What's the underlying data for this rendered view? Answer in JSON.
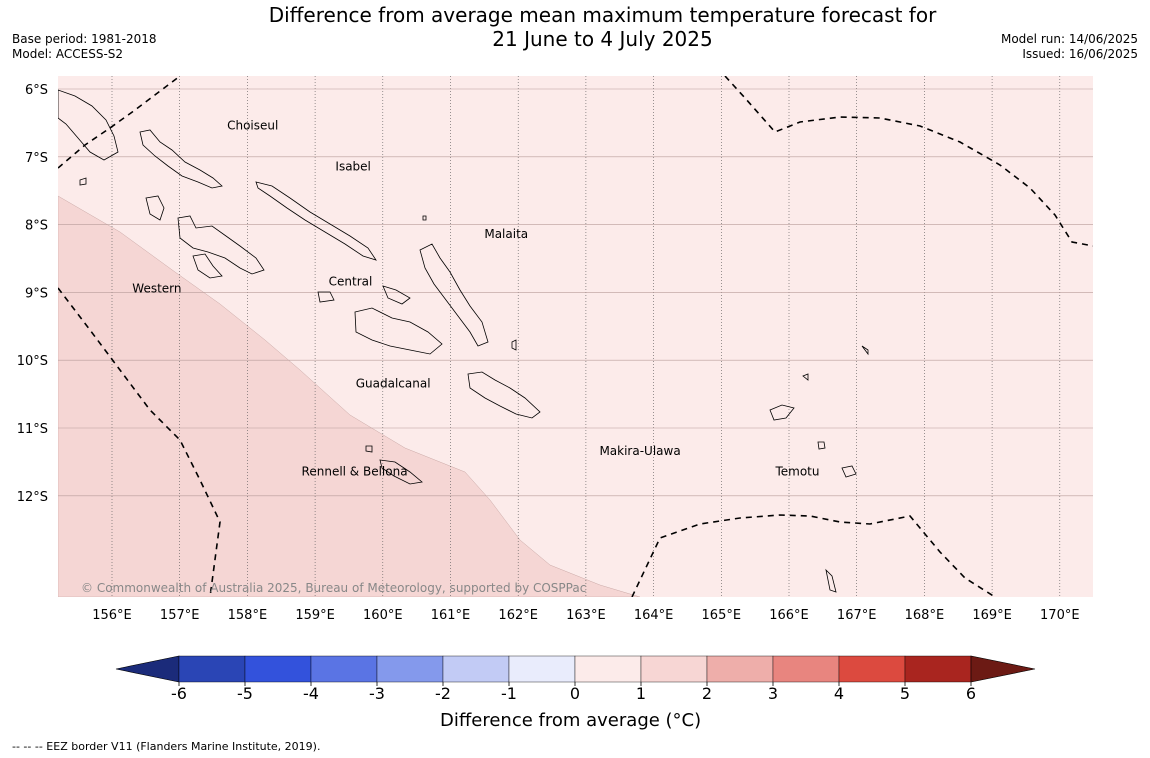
{
  "title_line1": "Difference from average mean maximum temperature forecast for",
  "title_line2": "21 June to 4 July 2025",
  "base_period": "Base period: 1981-2018",
  "model": "Model: ACCESS-S2",
  "model_run": "Model run: 14/06/2025",
  "issued": "Issued: 16/06/2025",
  "copyright": "© Commonwealth of Australia 2025, Bureau of Meteorology, supported by COSPPac",
  "lat_labels": [
    "6°S",
    "7°S",
    "8°S",
    "9°S",
    "10°S",
    "11°S",
    "12°S"
  ],
  "lon_labels": [
    "156°E",
    "157°E",
    "158°E",
    "159°E",
    "160°E",
    "161°E",
    "162°E",
    "163°E",
    "164°E",
    "165°E",
    "166°E",
    "167°E",
    "168°E",
    "169°E",
    "170°E"
  ],
  "regions": [
    {
      "name": "Choiseul",
      "lon": 157.7,
      "lat": -6.6
    },
    {
      "name": "Isabel",
      "lon": 159.3,
      "lat": -7.2
    },
    {
      "name": "Malaita",
      "lon": 161.5,
      "lat": -8.2
    },
    {
      "name": "Western",
      "lon": 156.3,
      "lat": -9.0
    },
    {
      "name": "Central",
      "lon": 159.2,
      "lat": -8.9
    },
    {
      "name": "Guadalcanal",
      "lon": 159.6,
      "lat": -10.4
    },
    {
      "name": "Makira-Ulawa",
      "lon": 163.2,
      "lat": -11.4
    },
    {
      "name": "Rennell & Bellona",
      "lon": 158.8,
      "lat": -11.7
    },
    {
      "name": "Temotu",
      "lon": 165.8,
      "lat": -11.7
    }
  ],
  "colorbar": {
    "ticks": [
      "-6",
      "-5",
      "-4",
      "-3",
      "-2",
      "-1",
      "0",
      "1",
      "2",
      "3",
      "4",
      "5",
      "6"
    ],
    "colors": [
      "#1b2b7a",
      "#2a45b5",
      "#3352dc",
      "#5a74e4",
      "#8499ec",
      "#c2cbf5",
      "#e9ecfc",
      "#fcebea",
      "#f7d6d4",
      "#eeaeaa",
      "#e8857f",
      "#dc4a3f",
      "#a9251f",
      "#6c1a14"
    ],
    "title": "Difference from average (°C)"
  },
  "footnote": "--  --  -- EEZ border V11 (Flanders Marine Institute, 2019)."
}
